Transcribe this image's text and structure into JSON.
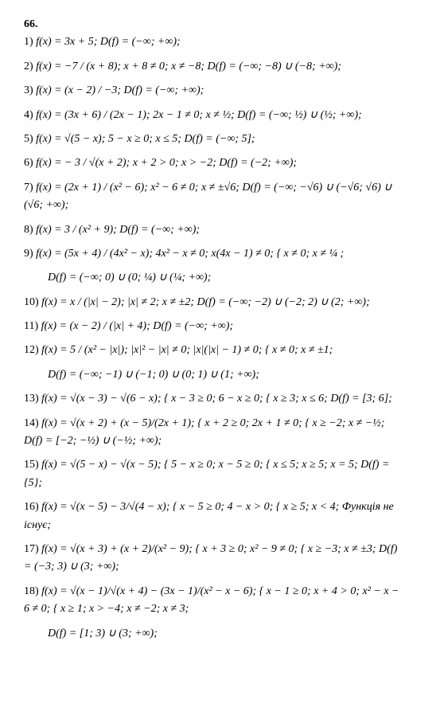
{
  "problem_number": "66.",
  "items": [
    {
      "num": "1)",
      "text": "f(x) = 3x + 5;   D(f) = (−∞; +∞);"
    },
    {
      "num": "2)",
      "text": "f(x) = −7 / (x + 8);   x + 8 ≠ 0;   x ≠ −8;   D(f) = (−∞; −8) ∪ (−8; +∞);"
    },
    {
      "num": "3)",
      "text": "f(x) = (x − 2) / −3;   D(f) = (−∞; +∞);"
    },
    {
      "num": "4)",
      "text": "f(x) = (3x + 6) / (2x − 1);   2x − 1 ≠ 0;   x ≠ ½;   D(f) = (−∞; ½) ∪ (½; +∞);"
    },
    {
      "num": "5)",
      "text": "f(x) = √(5 − x);   5 − x ≥ 0;   x ≤ 5;   D(f) = (−∞; 5];"
    },
    {
      "num": "6)",
      "text": "f(x) = − 3 / √(x + 2);   x + 2 > 0;   x > −2;   D(f) = (−2; +∞);"
    },
    {
      "num": "7)",
      "text": "f(x) = (2x + 1) / (x² − 6);   x² − 6 ≠ 0;   x ≠ ±√6;   D(f) = (−∞; −√6) ∪ (−√6; √6) ∪ (√6; +∞);"
    },
    {
      "num": "8)",
      "text": "f(x) = 3 / (x² + 9);   D(f) = (−∞; +∞);"
    },
    {
      "num": "9)",
      "text": "f(x) = (5x + 4) / (4x² − x);   4x² − x ≠ 0;   x(4x − 1) ≠ 0;   { x ≠ 0;  x ≠ ¼ ;",
      "extra": "D(f) = (−∞; 0) ∪ (0; ¼) ∪ (¼; +∞);"
    },
    {
      "num": "10)",
      "text": "f(x) = x / (|x| − 2);   |x| ≠ 2;   x ≠ ±2;   D(f) = (−∞; −2) ∪ (−2; 2) ∪ (2; +∞);"
    },
    {
      "num": "11)",
      "text": "f(x) = (x − 2) / (|x| + 4);   D(f) = (−∞; +∞);"
    },
    {
      "num": "12)",
      "text": "f(x) = 5 / (x² − |x|);   |x|² − |x| ≠ 0;   |x|(|x| − 1) ≠ 0;   { x ≠ 0;  x ≠ ±1;",
      "extra": "D(f) = (−∞; −1) ∪ (−1; 0) ∪ (0; 1) ∪ (1; +∞);"
    },
    {
      "num": "13)",
      "text": "f(x) = √(x − 3) − √(6 − x);   { x − 3 ≥ 0;  6 − x ≥ 0;   { x ≥ 3;  x ≤ 6;   D(f) = [3; 6];"
    },
    {
      "num": "14)",
      "text": "f(x) = √(x + 2) + (x − 5)/(2x + 1);   { x + 2 ≥ 0;  2x + 1 ≠ 0;   { x ≥ −2;  x ≠ −½;   D(f) = [−2; −½) ∪ (−½; +∞);"
    },
    {
      "num": "15)",
      "text": "f(x) = √(5 − x) − √(x − 5);   { 5 − x ≥ 0;  x − 5 ≥ 0;   { x ≤ 5;  x ≥ 5;   x = 5;   D(f) = {5};"
    },
    {
      "num": "16)",
      "text": "f(x) = √(x − 5) − 3/√(4 − x);   { x − 5 ≥ 0;  4 − x > 0;   { x ≥ 5;  x < 4;   Функція не існує;"
    },
    {
      "num": "17)",
      "text": "f(x) = √(x + 3) + (x + 2)/(x² − 9);   { x + 3 ≥ 0;  x² − 9 ≠ 0;   { x ≥ −3;  x ≠ ±3;   D(f) = (−3; 3) ∪ (3; +∞);"
    },
    {
      "num": "18)",
      "text": "f(x) = √(x − 1)/√(x + 4) − (3x − 1)/(x² − x − 6);   { x − 1 ≥ 0;  x + 4 > 0;  x² − x − 6 ≠ 0;   { x ≥ 1;  x > −4;  x ≠ −2;  x ≠ 3;",
      "extra": "D(f) = [1; 3) ∪ (3; +∞);"
    }
  ]
}
